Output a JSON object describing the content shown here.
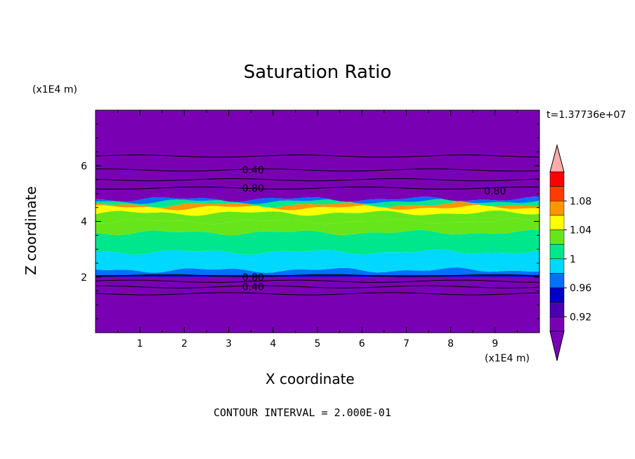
{
  "chart_data": {
    "type": "heatmap",
    "title": "Saturation Ratio",
    "xlabel": "X coordinate",
    "ylabel": "Z coordinate",
    "x_unit": "(x1E4 m)",
    "y_unit": "(x1E4 m)",
    "time_label": "t=1.37736e+07",
    "footer": "CONTOUR INTERVAL = 2.000E-01",
    "xlim": [
      0,
      10
    ],
    "ylim": [
      0,
      8
    ],
    "x_ticks": [
      "1",
      "2",
      "3",
      "4",
      "5",
      "6",
      "7",
      "8",
      "9"
    ],
    "y_ticks": [
      "2",
      "4",
      "6"
    ],
    "colorbar": {
      "levels": [
        0.9,
        0.92,
        0.94,
        0.96,
        0.98,
        1.0,
        1.02,
        1.04,
        1.06,
        1.08,
        1.1
      ],
      "tick_labels": [
        "0.92",
        "0.96",
        "1",
        "1.04",
        "1.08"
      ],
      "colors": [
        "#7a00b4",
        "#4a00b0",
        "#0000c8",
        "#0070ff",
        "#00d8ff",
        "#00e68c",
        "#66e61a",
        "#ffff00",
        "#ff9600",
        "#ff3c00",
        "#ff0000"
      ],
      "over_color": "#ffaaaa",
      "under_color": "#7a00b4"
    },
    "contour_labels": [
      {
        "text": "0.40",
        "x": 3.55,
        "z": 5.85
      },
      {
        "text": "0.80",
        "x": 3.55,
        "z": 5.2
      },
      {
        "text": "0.80",
        "x": 9.0,
        "z": 5.1
      },
      {
        "text": "0.80",
        "x": 3.55,
        "z": 2.0
      },
      {
        "text": "0.40",
        "x": 3.55,
        "z": 1.65
      }
    ],
    "contour_lines_z": [
      6.35,
      5.85,
      5.5,
      5.2,
      2.05,
      1.85,
      1.65,
      1.4
    ],
    "bands": [
      {
        "z0": 0.0,
        "z1": 2.0,
        "value": 0.5
      },
      {
        "z0": 2.0,
        "z1": 2.08,
        "value": 0.95
      },
      {
        "z0": 2.08,
        "z1": 2.25,
        "value": 0.97
      },
      {
        "z0": 2.25,
        "z1": 2.9,
        "value": 0.99
      },
      {
        "z0": 2.9,
        "z1": 3.6,
        "value": 1.01
      },
      {
        "z0": 3.6,
        "z1": 4.0,
        "value": 1.02
      },
      {
        "z0": 4.0,
        "z1": 4.3,
        "value": 1.03
      },
      {
        "z0": 4.3,
        "z1": 4.5,
        "value": 1.05
      },
      {
        "z0": 4.5,
        "z1": 4.6,
        "value": 1.07
      },
      {
        "z0": 4.6,
        "z1": 4.72,
        "value": 1.01
      },
      {
        "z0": 4.72,
        "z1": 4.8,
        "value": 0.97
      },
      {
        "z0": 4.8,
        "z1": 8.0,
        "value": 0.5
      }
    ]
  }
}
